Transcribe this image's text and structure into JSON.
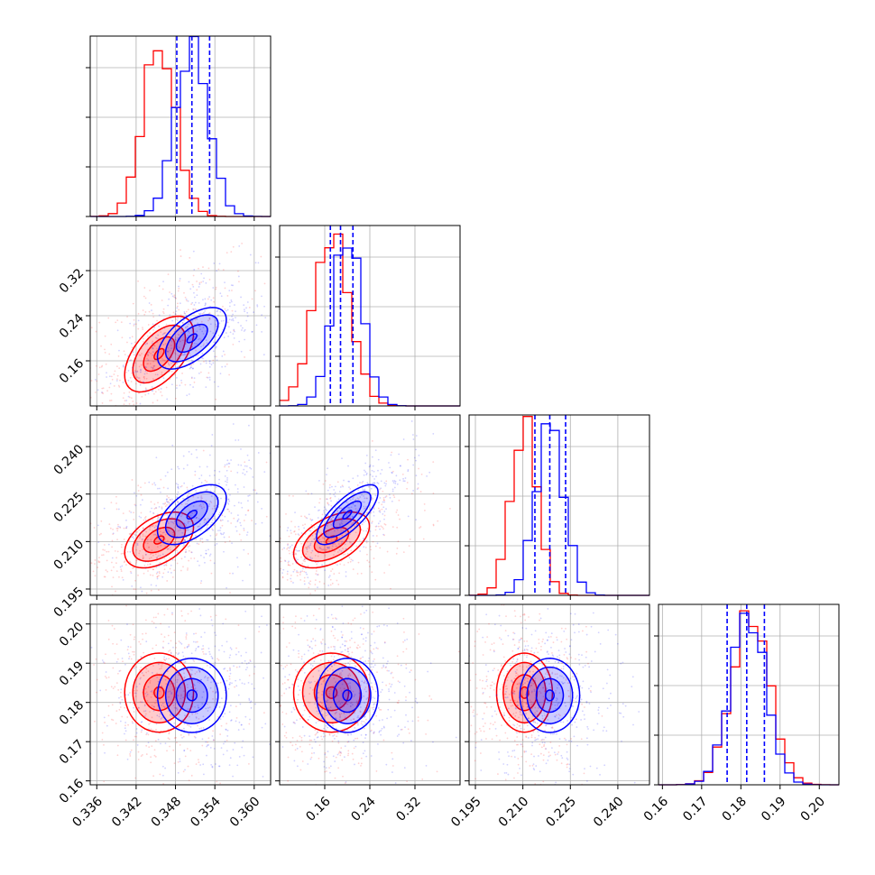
{
  "chart_data": {
    "type": "corner",
    "grid": true,
    "n_params": 4,
    "colors": {
      "red": "#ff0000",
      "blue": "#0000ff"
    },
    "series": [
      {
        "color": "#ff0000",
        "means": [
          0.3455,
          0.172,
          0.2105,
          0.1825
        ],
        "sds": [
          0.0025,
          0.032,
          0.0042,
          0.0048
        ]
      },
      {
        "color": "#0000ff",
        "means": [
          0.3505,
          0.2,
          0.2185,
          0.1818
        ],
        "sds": [
          0.0025,
          0.026,
          0.0045,
          0.0045
        ]
      }
    ],
    "correlations": {
      "red": {
        "1_0": 0.55,
        "2_0": 0.45,
        "2_1": 0.5,
        "3_0": 0.0,
        "3_1": 0.0,
        "3_2": 0.0
      },
      "blue": {
        "1_0": 0.6,
        "2_0": 0.55,
        "2_1": 0.75,
        "3_0": 0.0,
        "3_1": 0.0,
        "3_2": 0.0
      }
    },
    "quantile_lines": [
      {
        "param": 0,
        "values": [
          0.3482,
          0.3505,
          0.3532
        ]
      },
      {
        "param": 1,
        "values": [
          0.17,
          0.188,
          0.21
        ]
      },
      {
        "param": 2,
        "values": [
          0.2138,
          0.2185,
          0.2235
        ]
      },
      {
        "param": 3,
        "values": [
          0.1765,
          0.1815,
          0.186
        ]
      }
    ],
    "axes": [
      {
        "range": [
          0.335,
          0.3625
        ],
        "ticks": [
          0.336,
          0.342,
          0.348,
          0.354,
          0.36
        ],
        "tick_labels": [
          "0.336",
          "0.342",
          "0.348",
          "0.354",
          "0.360"
        ]
      },
      {
        "range": [
          0.08,
          0.4
        ],
        "ticks": [
          0.16,
          0.24,
          0.32
        ],
        "tick_labels": [
          "0.16",
          "0.24",
          "0.32"
        ]
      },
      {
        "range": [
          0.193,
          0.25
        ],
        "ticks": [
          0.195,
          0.21,
          0.225,
          0.24
        ],
        "tick_labels": [
          "0.195",
          "0.210",
          "0.225",
          "0.240"
        ]
      },
      {
        "range": [
          0.159,
          0.205
        ],
        "ticks": [
          0.16,
          0.17,
          0.18,
          0.19,
          0.2
        ],
        "tick_labels": [
          "0.16",
          "0.17",
          "0.18",
          "0.19",
          "0.20"
        ]
      }
    ]
  }
}
